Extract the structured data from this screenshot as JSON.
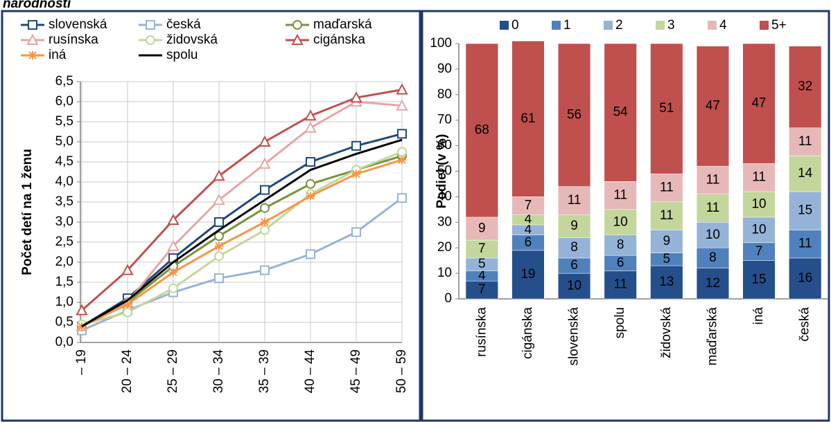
{
  "header": {
    "title": "národnosti"
  },
  "chart_data": [
    {
      "type": "line",
      "y_label": "Počet detí na 1 ženu",
      "categories": [
        "– 19",
        "20 – 24",
        "25 – 29",
        "30 – 34",
        "35 – 39",
        "40 – 44",
        "45 – 49",
        "50 – 59"
      ],
      "ylim": [
        0,
        6.5
      ],
      "yticks": [
        {
          "value": 0,
          "label": "0,0"
        },
        {
          "value": 0.5,
          "label": "0,5"
        },
        {
          "value": 1,
          "label": "1,0"
        },
        {
          "value": 1.5,
          "label": "1,5"
        },
        {
          "value": 2,
          "label": "2,0"
        },
        {
          "value": 2.5,
          "label": "2,5"
        },
        {
          "value": 3,
          "label": "3,0"
        },
        {
          "value": 3.5,
          "label": "3,5"
        },
        {
          "value": 4,
          "label": "4,0"
        },
        {
          "value": 4.5,
          "label": "4,5"
        },
        {
          "value": 5,
          "label": "5,0"
        },
        {
          "value": 5.5,
          "label": "5,5"
        },
        {
          "value": 6,
          "label": "6,0"
        },
        {
          "value": 6.5,
          "label": "6,5"
        }
      ],
      "grid": true,
      "legend": "top",
      "series": [
        {
          "name": "slovenská",
          "color": "#1f497d",
          "marker": "square",
          "values": [
            0.4,
            1.1,
            2.1,
            3.0,
            3.8,
            4.5,
            4.9,
            5.2
          ]
        },
        {
          "name": "česká",
          "color": "#95b3d7",
          "marker": "square",
          "values": [
            0.3,
            0.8,
            1.25,
            1.6,
            1.8,
            2.2,
            2.75,
            3.6
          ]
        },
        {
          "name": "maďarská",
          "color": "#77933c",
          "marker": "circle",
          "values": [
            0.4,
            1.0,
            1.9,
            2.65,
            3.35,
            3.95,
            4.3,
            4.65
          ]
        },
        {
          "name": "rusínska",
          "color": "#e6a5a4",
          "marker": "triangle",
          "values": [
            0.4,
            1.0,
            2.4,
            3.55,
            4.45,
            5.35,
            6.0,
            5.9
          ]
        },
        {
          "name": "židovská",
          "color": "#c3d69b",
          "marker": "circle",
          "values": [
            0.45,
            0.75,
            1.35,
            2.15,
            2.8,
            3.7,
            4.3,
            4.75
          ]
        },
        {
          "name": "cigánska",
          "color": "#c0504d",
          "marker": "triangle",
          "values": [
            0.8,
            1.8,
            3.05,
            4.15,
            5.0,
            5.65,
            6.1,
            6.3
          ]
        },
        {
          "name": "iná",
          "color": "#f79646",
          "marker": "star",
          "values": [
            0.4,
            0.95,
            1.75,
            2.4,
            3.0,
            3.65,
            4.2,
            4.55
          ]
        },
        {
          "name": "spolu",
          "color": "#000000",
          "marker": null,
          "values": [
            0.4,
            1.05,
            2.0,
            2.8,
            3.55,
            4.3,
            4.7,
            5.05
          ]
        }
      ]
    },
    {
      "type": "bar",
      "stacked": true,
      "y_label": "Podiel (v %)",
      "categories": [
        "rusínska",
        "cigánska",
        "slovenská",
        "spolu",
        "židovská",
        "maďarská",
        "iná",
        "česká"
      ],
      "ylim": [
        0,
        100
      ],
      "yticks": [
        0,
        10,
        20,
        30,
        40,
        50,
        60,
        70,
        80,
        90,
        100
      ],
      "grid": false,
      "legend": "top",
      "series": [
        {
          "name": "0",
          "color": "#254f8a",
          "values": [
            7,
            19,
            10,
            11,
            13,
            12,
            15,
            16
          ]
        },
        {
          "name": "1",
          "color": "#4f81bd",
          "values": [
            4,
            6,
            6,
            6,
            5,
            8,
            7,
            11
          ]
        },
        {
          "name": "2",
          "color": "#95b3d7",
          "values": [
            5,
            4,
            8,
            8,
            9,
            10,
            10,
            15
          ]
        },
        {
          "name": "3",
          "color": "#c3d69b",
          "values": [
            7,
            4,
            9,
            10,
            11,
            11,
            10,
            14
          ]
        },
        {
          "name": "4",
          "color": "#e6b9b8",
          "values": [
            9,
            7,
            11,
            11,
            11,
            11,
            11,
            11
          ]
        },
        {
          "name": "5+",
          "color": "#c0504d",
          "values": [
            68,
            61,
            56,
            54,
            51,
            47,
            47,
            32
          ]
        }
      ]
    }
  ]
}
